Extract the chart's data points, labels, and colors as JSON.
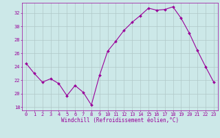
{
  "x": [
    0,
    1,
    2,
    3,
    4,
    5,
    6,
    7,
    8,
    9,
    10,
    11,
    12,
    13,
    14,
    15,
    16,
    17,
    18,
    19,
    20,
    21,
    22,
    23
  ],
  "y": [
    24.5,
    23.0,
    21.7,
    22.2,
    21.5,
    19.7,
    21.2,
    20.2,
    18.3,
    22.7,
    26.3,
    27.8,
    29.4,
    30.6,
    31.6,
    32.7,
    32.4,
    32.5,
    32.9,
    31.2,
    29.0,
    26.4,
    24.0,
    21.7
  ],
  "line_color": "#990099",
  "marker": "D",
  "markersize": 2.0,
  "bg_color": "#cce8e8",
  "grid_color": "#b0c8c8",
  "xlabel": "Windchill (Refroidissement éolien,°C)",
  "xlabel_color": "#990099",
  "tick_color": "#990099",
  "ylabel_ticks": [
    18,
    20,
    22,
    24,
    26,
    28,
    30,
    32
  ],
  "xlim": [
    -0.5,
    23.5
  ],
  "ylim": [
    17.5,
    33.5
  ],
  "tick_fontsize": 5.0,
  "xlabel_fontsize": 5.5,
  "linewidth": 0.8
}
